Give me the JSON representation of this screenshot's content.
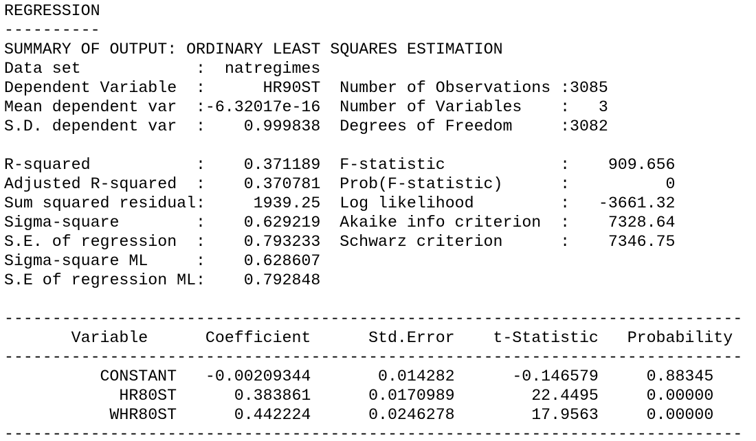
{
  "header": {
    "title": "REGRESSION",
    "title_rule": "----------",
    "summary": "SUMMARY OF OUTPUT: ORDINARY LEAST SQUARES ESTIMATION"
  },
  "separator": ":",
  "left_model_stats": [
    {
      "label": "Data set",
      "value": "natregimes"
    },
    {
      "label": "Dependent Variable",
      "value": "HR90ST"
    },
    {
      "label": "Mean dependent var",
      "value": "-6.32017e-16"
    },
    {
      "label": "S.D. dependent var",
      "value": "0.999838"
    }
  ],
  "right_model_stats": [
    {
      "label": "Number of Observations",
      "value": "3085"
    },
    {
      "label": "Number of Variables",
      "value": "3"
    },
    {
      "label": "Degrees of Freedom",
      "value": "3082"
    }
  ],
  "left_fit_stats": [
    {
      "label": "R-squared",
      "value": "0.371189"
    },
    {
      "label": "Adjusted R-squared",
      "value": "0.370781"
    },
    {
      "label": "Sum squared residual",
      "value": "1939.25"
    },
    {
      "label": "Sigma-square",
      "value": "0.629219"
    },
    {
      "label": "S.E. of regression",
      "value": "0.793233"
    },
    {
      "label": "Sigma-square ML",
      "value": "0.628607"
    },
    {
      "label": "S.E of regression ML",
      "value": "0.792848"
    }
  ],
  "right_fit_stats": [
    {
      "label": "F-statistic",
      "value": "909.656"
    },
    {
      "label": "Prob(F-statistic)",
      "value": "0"
    },
    {
      "label": "Log likelihood",
      "value": "-3661.32"
    },
    {
      "label": "Akaike info criterion",
      "value": "7328.64"
    },
    {
      "label": "Schwarz criterion",
      "value": "7346.75"
    }
  ],
  "table": {
    "rule": "-----------------------------------------------------------------------------",
    "columns": [
      "Variable",
      "Coefficient",
      "Std.Error",
      "t-Statistic",
      "Probability"
    ],
    "rows": [
      [
        "CONSTANT",
        "-0.00209344",
        "0.014282",
        "-0.146579",
        "0.88345"
      ],
      [
        "HR80ST",
        "0.383861",
        "0.0170989",
        "22.4495",
        "0.00000"
      ],
      [
        "WHR80ST",
        "0.442224",
        "0.0246278",
        "17.9563",
        "0.00000"
      ]
    ]
  }
}
